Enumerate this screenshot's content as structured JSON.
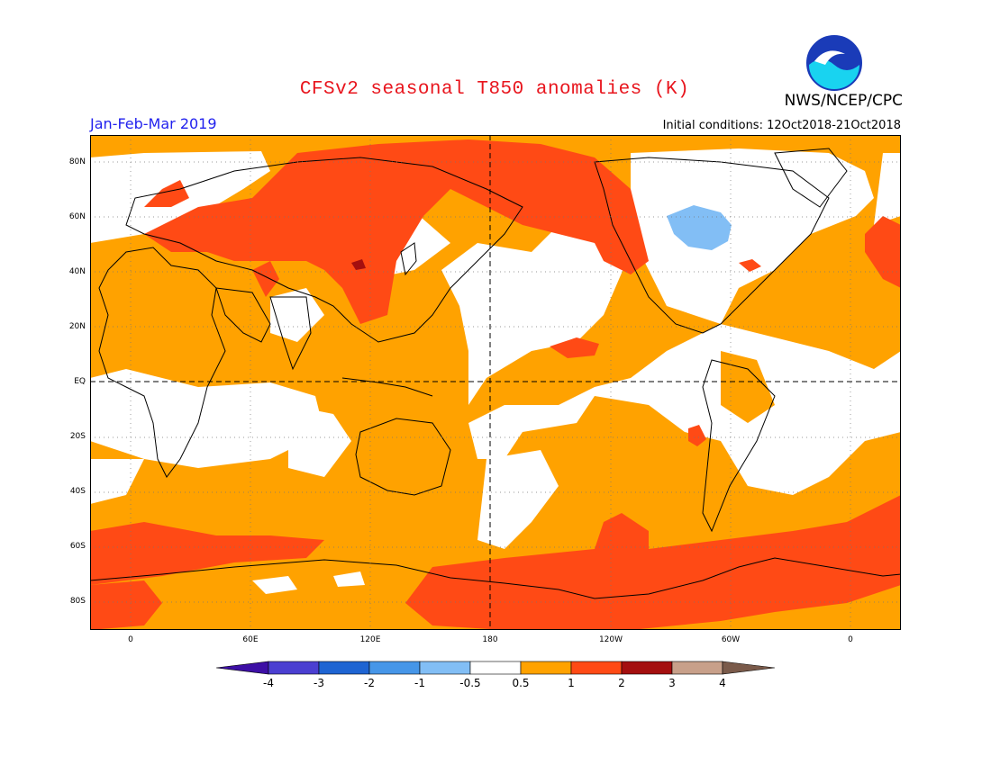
{
  "header": {
    "title": "CFSv2 seasonal T850 anomalies (K)",
    "agency": "NWS/NCEP/CPC",
    "period": "Jan-Feb-Mar 2019",
    "initial_conditions": "Initial conditions: 12Oct2018-21Oct2018"
  },
  "map": {
    "lat_labels": [
      "80N",
      "60N",
      "40N",
      "20N",
      "EQ",
      "20S",
      "40S",
      "60S",
      "80S"
    ],
    "lon_labels": [
      "0",
      "60E",
      "120E",
      "180",
      "120W",
      "60W",
      "0"
    ]
  },
  "colorbar": {
    "labels": [
      "-4",
      "-3",
      "-2",
      "-1",
      "-0.5",
      "0.5",
      "1",
      "2",
      "3",
      "4"
    ],
    "colors": [
      "#3d0fa5",
      "#4b3fd1",
      "#1e64d2",
      "#4696e8",
      "#82bef5",
      "#ffffff",
      "#ffa200",
      "#ff4a15",
      "#a40f0f",
      "#c8a08a",
      "#7a5a4a"
    ]
  }
}
